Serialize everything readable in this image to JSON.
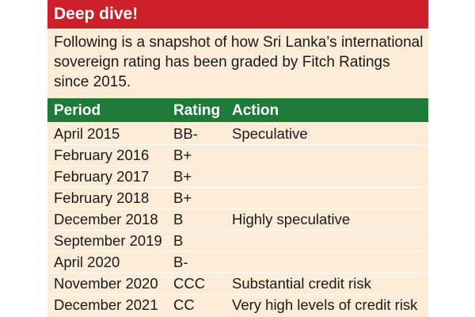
{
  "header": {
    "title": "Deep dive!"
  },
  "intro": {
    "text": "Following is a snapshot of how Sri Lanka’s international sovereign rating has been graded by Fitch Ratings since 2015."
  },
  "table": {
    "columns": [
      "Period",
      "Rating",
      "Action"
    ],
    "rows": [
      {
        "period": "April 2015",
        "rating": "BB-",
        "action": "Speculative"
      },
      {
        "period": "February 2016",
        "rating": "B+",
        "action": ""
      },
      {
        "period": "February 2017",
        "rating": "B+",
        "action": ""
      },
      {
        "period": "February 2018",
        "rating": "B+",
        "action": ""
      },
      {
        "period": "December 2018",
        "rating": "B",
        "action": "Highly speculative"
      },
      {
        "period": "September 2019",
        "rating": "B",
        "action": ""
      },
      {
        "period": "April 2020",
        "rating": "B-",
        "action": ""
      },
      {
        "period": "November 2020",
        "rating": "CCC",
        "action": "Substantial credit risk"
      },
      {
        "period": "December 2021",
        "rating": "CC",
        "action": "Very high levels of credit risk"
      }
    ]
  },
  "colors": {
    "header_bg": "#cc1f2a",
    "table_head_bg": "#1f7a3a",
    "panel_bg": "#fdecd8"
  }
}
